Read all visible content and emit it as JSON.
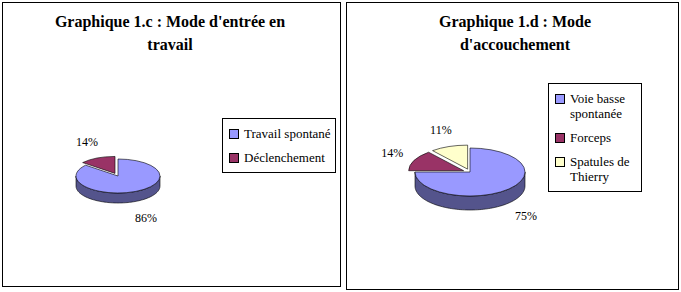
{
  "chart_data": [
    {
      "type": "pie",
      "title": "Graphique 1.c : Mode d'entrée en travail",
      "categories": [
        "Travail spontané",
        "Déclenchement"
      ],
      "values": [
        86,
        14
      ],
      "value_labels": [
        "86%",
        "14%"
      ],
      "colors": [
        "#9999ff",
        "#993366"
      ],
      "data_labels": true,
      "legend": "right"
    },
    {
      "type": "pie",
      "title": "Graphique 1.d : Mode d'accouchement",
      "categories": [
        "Voie basse spontanée",
        "Forceps",
        "Spatules de Thierry"
      ],
      "values": [
        75,
        14,
        11
      ],
      "value_labels": [
        "75%",
        "14%",
        "11%"
      ],
      "colors": [
        "#9999ff",
        "#993366",
        "#ffffcc"
      ],
      "data_labels": true,
      "legend": "right"
    }
  ]
}
